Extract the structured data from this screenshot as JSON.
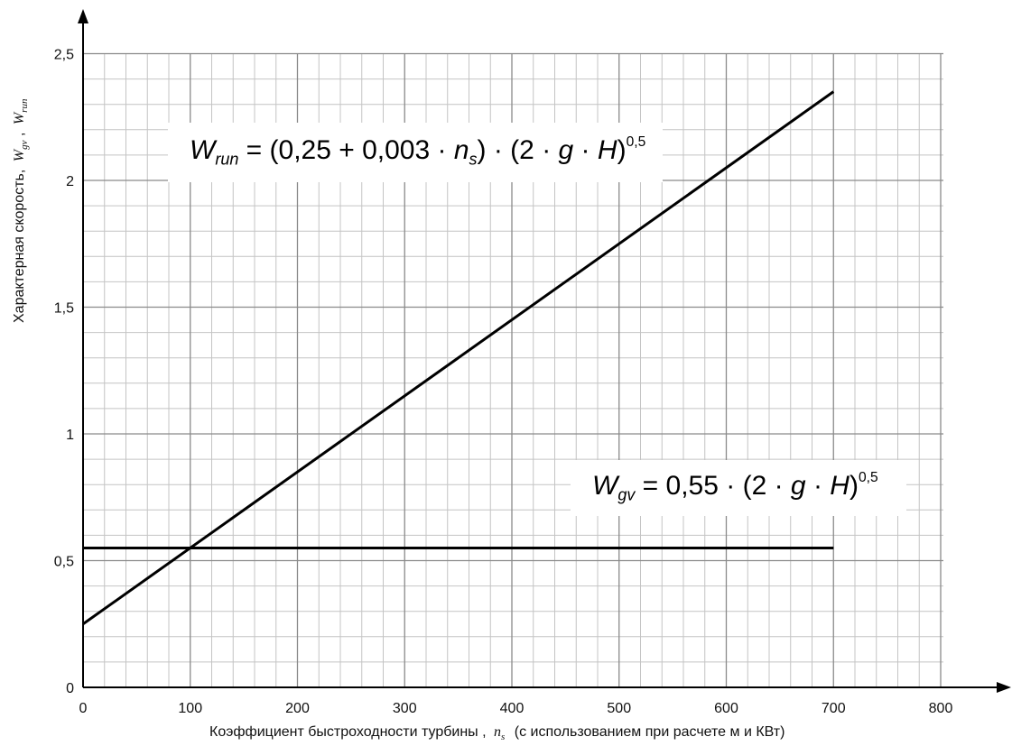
{
  "chart_data": {
    "type": "line",
    "xlabel": "Коэффициент быстроходности турбины ,",
    "xlabel_var": "n",
    "xlabel_var_sub": "s",
    "xlabel_suffix": "(с использованием при расчете м и КВт)",
    "ylabel": "Характерная скорость,",
    "ylabel_var1": "W",
    "ylabel_var1_sub": "gv",
    "ylabel_sep": ",",
    "ylabel_var2": "W",
    "ylabel_var2_sub": "run",
    "xlim": [
      0,
      850
    ],
    "ylim": [
      0,
      2.5
    ],
    "x_ticks": [
      0,
      100,
      200,
      300,
      400,
      500,
      600,
      700,
      800
    ],
    "x_tick_labels": [
      "0",
      "100",
      "200",
      "300",
      "400",
      "500",
      "600",
      "700",
      "800"
    ],
    "y_ticks": [
      0,
      0.5,
      1,
      1.5,
      2,
      2.5
    ],
    "y_tick_labels": [
      "0",
      "0,5",
      "1",
      "1,5",
      "2",
      "2,5"
    ],
    "grid": true,
    "series": [
      {
        "x": [
          0,
          700
        ],
        "y": [
          0.25,
          2.35
        ]
      },
      {
        "x": [
          0,
          700
        ],
        "y": [
          0.55,
          0.55
        ]
      }
    ],
    "annotations": {
      "run": {
        "W": "W",
        "sub": "run",
        "eq": " = (0,25 + 0,003 · ",
        "n": "n",
        "n_sub": "s",
        "mid": ") · (2 · ",
        "g": "g",
        "dot": " · ",
        "H": "H",
        "close": ")",
        "pow": "0,5"
      },
      "gv": {
        "W": "W",
        "sub": "gv",
        "eq": " = 0,55 · (2 · ",
        "g": "g",
        "dot": " · ",
        "H": "H",
        "close": ")",
        "pow": "0,5"
      }
    }
  }
}
